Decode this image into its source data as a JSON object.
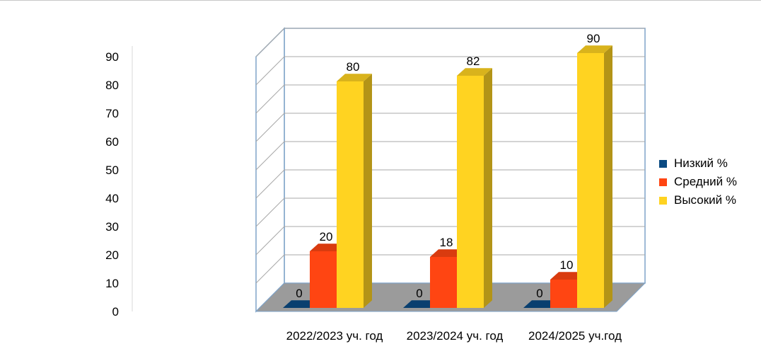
{
  "chart_data": {
    "type": "bar",
    "title": "",
    "xlabel": "",
    "ylabel": "",
    "ylim": [
      0,
      90
    ],
    "yticks": [
      0,
      10,
      20,
      30,
      40,
      50,
      60,
      70,
      80,
      90
    ],
    "categories": [
      "2022/2023 уч. год",
      "2023/2024 уч. год",
      "2024/2025 уч.год"
    ],
    "series": [
      {
        "name": "Низкий %",
        "color": "#0a4a82",
        "values": [
          0,
          0,
          0
        ]
      },
      {
        "name": "Средний %",
        "color": "#ff4512",
        "values": [
          20,
          18,
          10
        ]
      },
      {
        "name": "Высокий %",
        "color": "#ffd321",
        "values": [
          80,
          82,
          90
        ]
      }
    ],
    "grid": true,
    "legend_position": "right",
    "data_labels": true
  }
}
